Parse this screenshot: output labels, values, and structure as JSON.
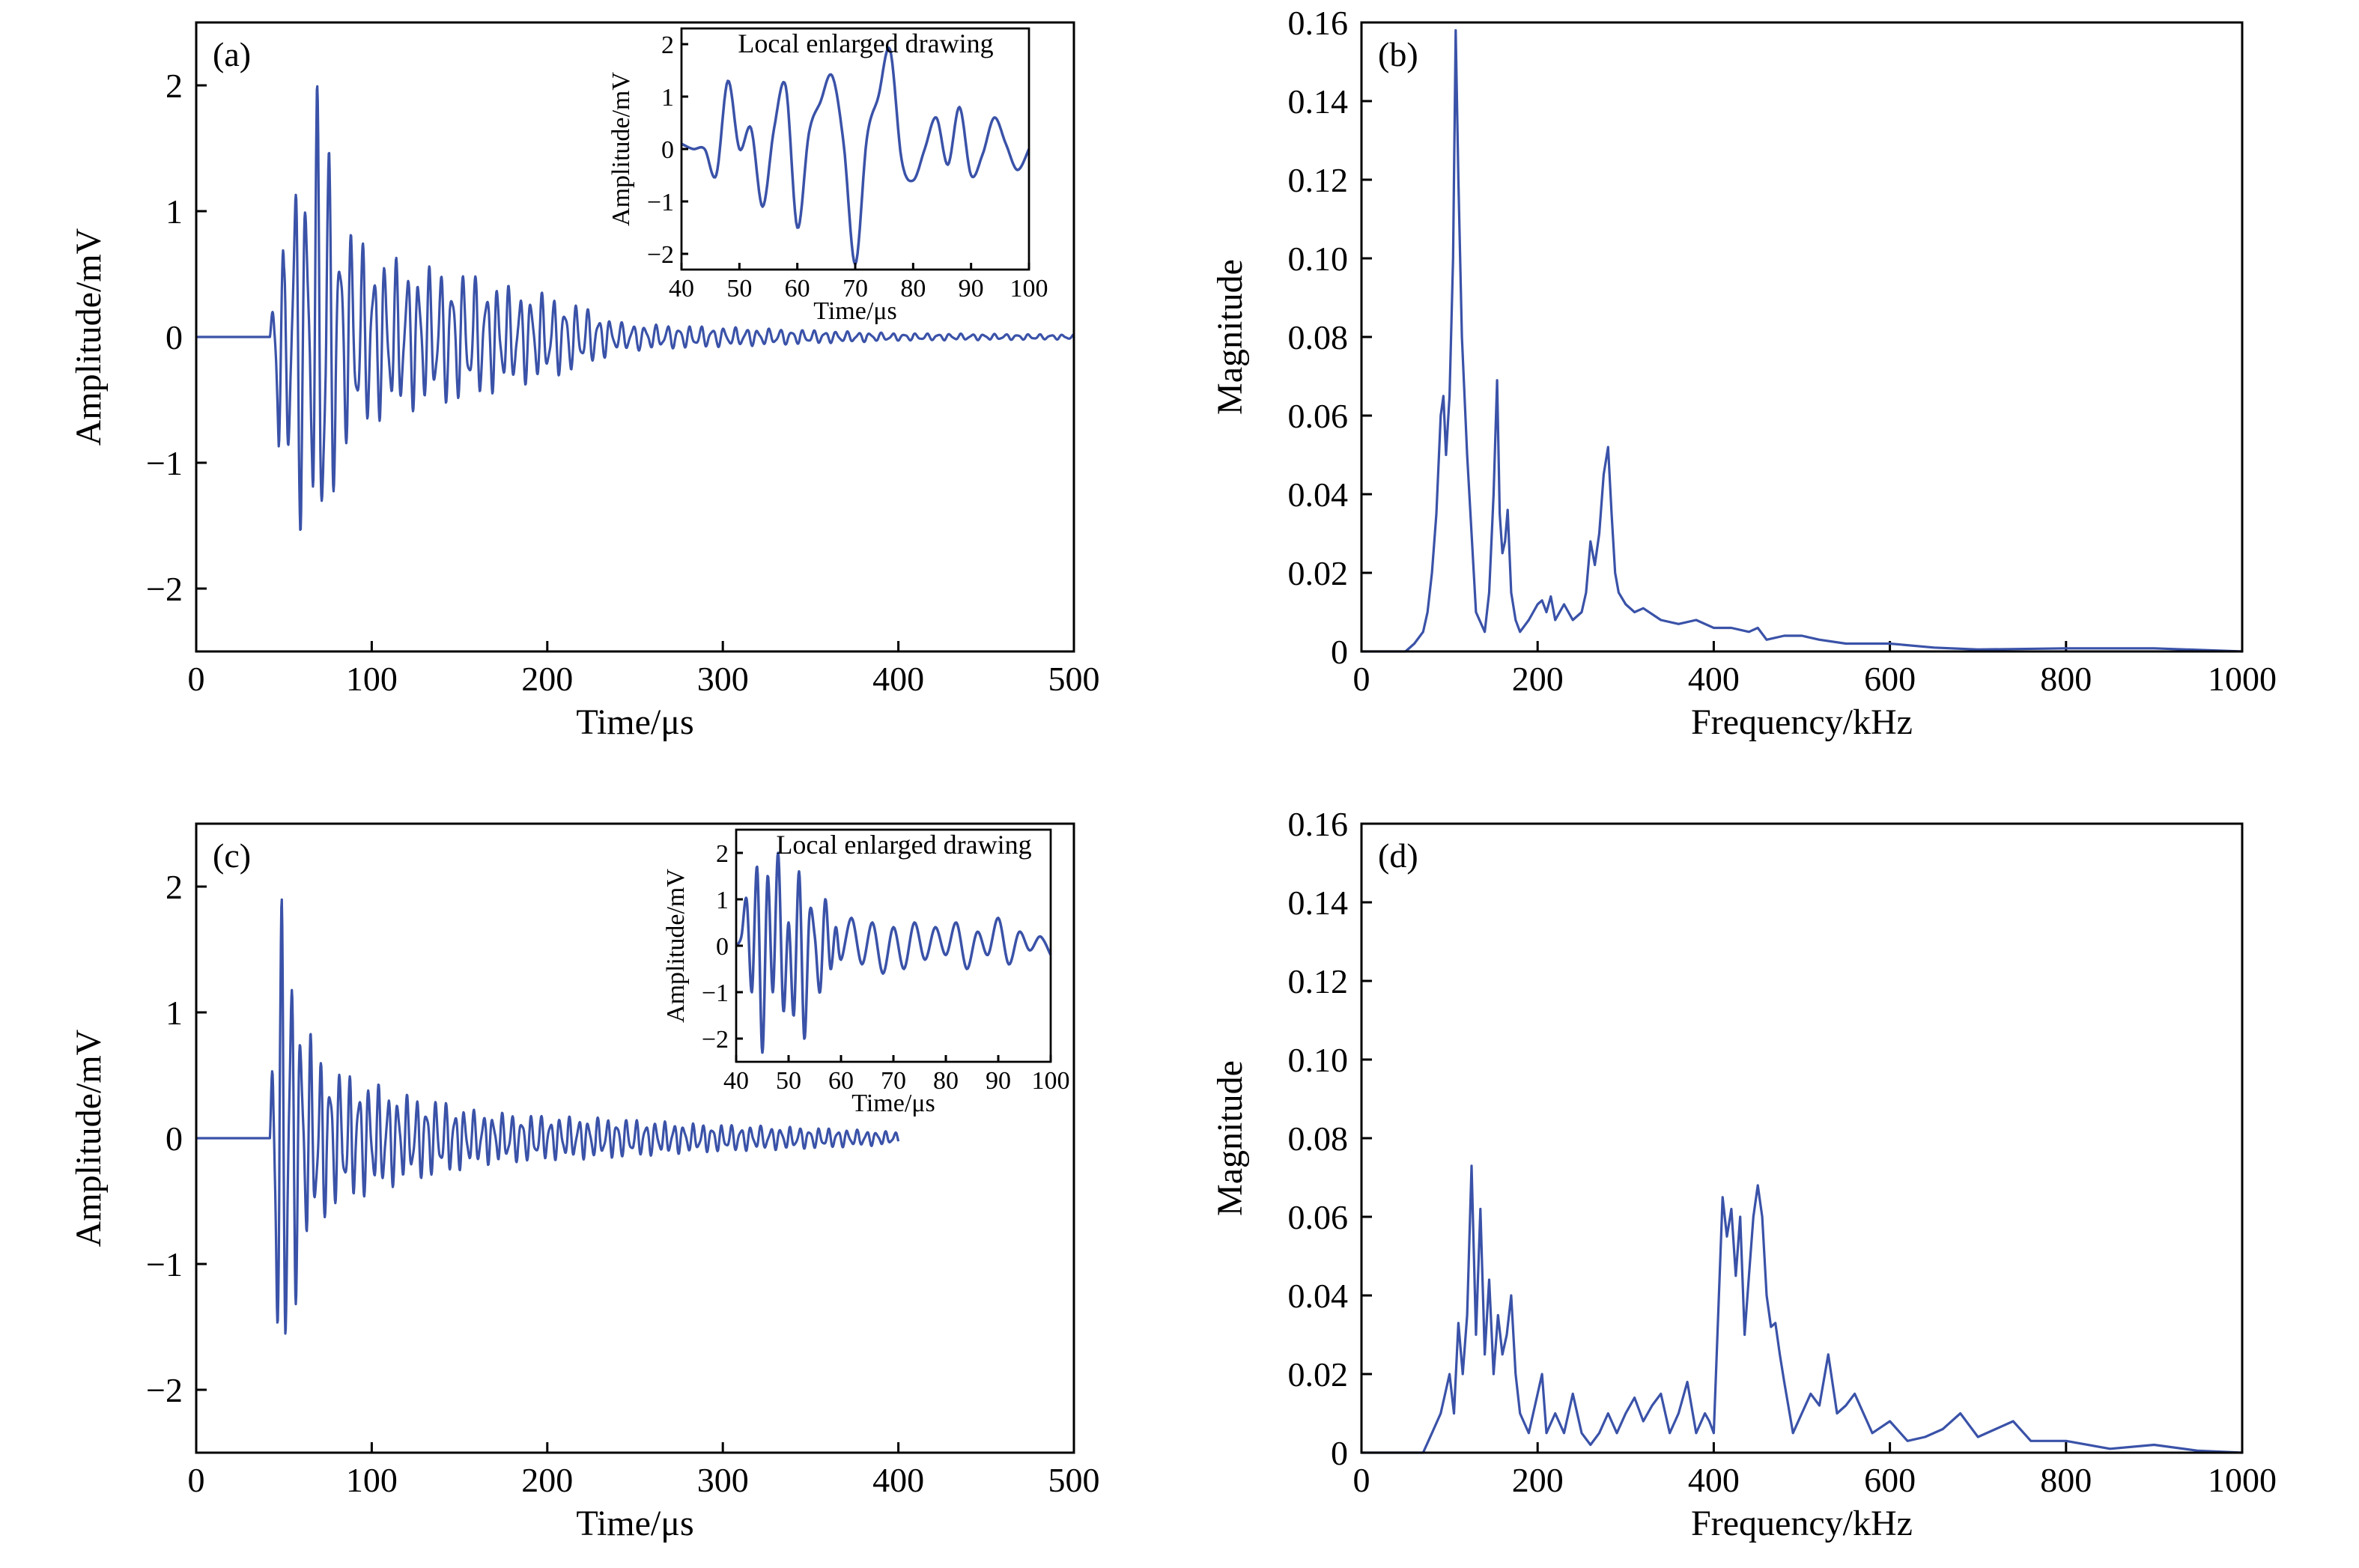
{
  "colors": {
    "series": "#3a52a8",
    "axes": "#000000",
    "background": "#ffffff"
  },
  "chart_data": [
    {
      "id": "a",
      "panel_label": "(a)",
      "type": "line",
      "xlabel": "Time/μs",
      "ylabel": "Amplitude/mV",
      "xlim": [
        0,
        500
      ],
      "ylim": [
        -2.5,
        2.5
      ],
      "xticks": [
        0,
        100,
        200,
        300,
        400,
        500
      ],
      "yticks": [
        -2,
        -1,
        0,
        1,
        2
      ],
      "ytick_labels": [
        "−2",
        "−1",
        "0",
        "1",
        "2"
      ],
      "x_end": 500,
      "series": [
        {
          "onset": 42,
          "end": 500,
          "envelope": [
            [
              0,
              0
            ],
            [
              42,
              0
            ],
            [
              45,
              0.6
            ],
            [
              47,
              1.3
            ],
            [
              50,
              0.6
            ],
            [
              52,
              1.1
            ],
            [
              55,
              1.4
            ],
            [
              58,
              1.6
            ],
            [
              62,
              1.45
            ],
            [
              66,
              1.35
            ],
            [
              70,
              2.3
            ],
            [
              75,
              1.8
            ],
            [
              80,
              1.0
            ],
            [
              90,
              0.85
            ],
            [
              100,
              0.7
            ],
            [
              120,
              0.6
            ],
            [
              140,
              0.55
            ],
            [
              160,
              0.5
            ],
            [
              180,
              0.4
            ],
            [
              200,
              0.35
            ],
            [
              220,
              0.25
            ],
            [
              240,
              0.12
            ],
            [
              260,
              0.1
            ],
            [
              300,
              0.08
            ],
            [
              400,
              0.03
            ],
            [
              500,
              0.02
            ]
          ],
          "mean_period": 6.5
        }
      ],
      "inset": {
        "title": "Local enlarged drawing",
        "xlabel": "Time/μs",
        "ylabel": "Amplitude/mV",
        "xlim": [
          40,
          100
        ],
        "ylim": [
          -2.3,
          2.3
        ],
        "xticks": [
          40,
          50,
          60,
          70,
          80,
          90,
          100
        ],
        "yticks": [
          -2,
          -1,
          0,
          1,
          2
        ],
        "ytick_labels": [
          "−2",
          "−1",
          "0",
          "1",
          "2"
        ],
        "x": [
          40,
          42,
          44,
          46,
          48,
          50,
          52,
          54,
          56,
          58,
          60,
          62,
          64,
          66,
          68,
          70,
          72,
          74,
          76,
          78,
          80,
          82,
          84,
          86,
          88,
          90,
          92,
          94,
          96,
          98,
          100
        ],
        "y": [
          0.1,
          0.0,
          0.0,
          -0.5,
          1.3,
          0.0,
          0.4,
          -1.1,
          0.4,
          1.2,
          -1.5,
          0.3,
          0.9,
          1.4,
          0.1,
          -2.2,
          0.2,
          1.0,
          1.9,
          -0.2,
          -0.6,
          0.0,
          0.6,
          -0.3,
          0.8,
          -0.5,
          -0.1,
          0.6,
          0.1,
          -0.4,
          0.0
        ]
      }
    },
    {
      "id": "b",
      "panel_label": "(b)",
      "type": "line",
      "xlabel": "Frequency/kHz",
      "ylabel": "Magnitude",
      "xlim": [
        0,
        1000
      ],
      "ylim": [
        0,
        0.16
      ],
      "xticks": [
        0,
        200,
        400,
        600,
        800,
        1000
      ],
      "yticks": [
        0,
        0.02,
        0.04,
        0.06,
        0.08,
        0.1,
        0.12,
        0.14,
        0.16
      ],
      "ytick_labels": [
        "0",
        "0.02",
        "0.04",
        "0.06",
        "0.08",
        "0.10",
        "0.12",
        "0.14",
        "0.16"
      ],
      "series": [
        {
          "x": [
            0,
            50,
            60,
            70,
            75,
            80,
            85,
            90,
            93,
            96,
            100,
            104,
            107,
            110,
            114,
            120,
            130,
            140,
            145,
            150,
            154,
            157,
            160,
            163,
            166,
            170,
            175,
            180,
            190,
            200,
            205,
            210,
            215,
            220,
            230,
            240,
            250,
            255,
            260,
            265,
            270,
            275,
            280,
            284,
            288,
            292,
            300,
            310,
            320,
            340,
            360,
            380,
            400,
            420,
            440,
            450,
            460,
            480,
            500,
            520,
            550,
            600,
            650,
            700,
            800,
            900,
            1000
          ],
          "y": [
            0,
            0,
            0.002,
            0.005,
            0.01,
            0.02,
            0.035,
            0.06,
            0.065,
            0.05,
            0.065,
            0.1,
            0.158,
            0.12,
            0.08,
            0.05,
            0.01,
            0.005,
            0.015,
            0.04,
            0.069,
            0.035,
            0.025,
            0.028,
            0.036,
            0.015,
            0.008,
            0.005,
            0.008,
            0.012,
            0.013,
            0.01,
            0.014,
            0.008,
            0.012,
            0.008,
            0.01,
            0.015,
            0.028,
            0.022,
            0.03,
            0.045,
            0.052,
            0.035,
            0.02,
            0.015,
            0.012,
            0.01,
            0.011,
            0.008,
            0.007,
            0.008,
            0.006,
            0.006,
            0.005,
            0.006,
            0.003,
            0.004,
            0.004,
            0.003,
            0.002,
            0.002,
            0.001,
            0.0005,
            0.0008,
            0.0008,
            0
          ]
        }
      ]
    },
    {
      "id": "c",
      "panel_label": "(c)",
      "type": "line",
      "xlabel": "Time/μs",
      "ylabel": "Amplitude/mV",
      "xlim": [
        0,
        500
      ],
      "ylim": [
        -2.5,
        2.5
      ],
      "xticks": [
        0,
        100,
        200,
        300,
        400,
        500
      ],
      "yticks": [
        -2,
        -1,
        0,
        1,
        2
      ],
      "ytick_labels": [
        "−2",
        "−1",
        "0",
        "1",
        "2"
      ],
      "series": [
        {
          "onset": 42,
          "end": 400,
          "envelope": [
            [
              0,
              0
            ],
            [
              42,
              0
            ],
            [
              44,
              1.2
            ],
            [
              46,
              2.3
            ],
            [
              48,
              1.8
            ],
            [
              50,
              2.1
            ],
            [
              52,
              2.0
            ],
            [
              55,
              1.5
            ],
            [
              60,
              1.0
            ],
            [
              70,
              0.7
            ],
            [
              80,
              0.55
            ],
            [
              100,
              0.45
            ],
            [
              120,
              0.35
            ],
            [
              140,
              0.3
            ],
            [
              160,
              0.22
            ],
            [
              200,
              0.18
            ],
            [
              240,
              0.16
            ],
            [
              280,
              0.12
            ],
            [
              320,
              0.1
            ],
            [
              360,
              0.08
            ],
            [
              400,
              0.05
            ]
          ],
          "mean_period": 5.5
        }
      ],
      "inset": {
        "title": "Local enlarged drawing",
        "xlabel": "Time/μs",
        "ylabel": "Amplitude/mV",
        "xlim": [
          40,
          100
        ],
        "ylim": [
          -2.5,
          2.5
        ],
        "xticks": [
          40,
          50,
          60,
          70,
          80,
          90,
          100
        ],
        "yticks": [
          -2,
          -1,
          0,
          1,
          2
        ],
        "ytick_labels": [
          "−2",
          "−1",
          "0",
          "1",
          "2"
        ],
        "x": [
          40,
          41,
          42,
          43,
          44,
          45,
          46,
          47,
          48,
          49,
          50,
          51,
          52,
          53,
          54,
          55,
          56,
          57,
          58,
          59,
          60,
          62,
          64,
          66,
          68,
          70,
          72,
          74,
          76,
          78,
          80,
          82,
          84,
          86,
          88,
          90,
          92,
          94,
          96,
          98,
          100
        ],
        "y": [
          0,
          0.2,
          1.0,
          -1.0,
          1.7,
          -2.3,
          1.5,
          -1.0,
          2.0,
          -1.4,
          0.5,
          -1.5,
          1.6,
          -2.0,
          0.7,
          0.2,
          -1.0,
          1.0,
          -0.5,
          0.4,
          -0.3,
          0.6,
          -0.4,
          0.5,
          -0.6,
          0.4,
          -0.5,
          0.5,
          -0.3,
          0.4,
          -0.2,
          0.5,
          -0.5,
          0.3,
          -0.2,
          0.6,
          -0.4,
          0.3,
          -0.1,
          0.2,
          -0.2
        ]
      }
    },
    {
      "id": "d",
      "panel_label": "(d)",
      "type": "line",
      "xlabel": "Frequency/kHz",
      "ylabel": "Magnitude",
      "xlim": [
        0,
        1000
      ],
      "ylim": [
        0,
        0.16
      ],
      "xticks": [
        0,
        200,
        400,
        600,
        800,
        1000
      ],
      "yticks": [
        0,
        0.02,
        0.04,
        0.06,
        0.08,
        0.1,
        0.12,
        0.14,
        0.16
      ],
      "ytick_labels": [
        "0",
        "0.02",
        "0.04",
        "0.06",
        "0.08",
        "0.10",
        "0.12",
        "0.14",
        "0.16"
      ],
      "series": [
        {
          "x": [
            0,
            70,
            80,
            90,
            95,
            100,
            105,
            110,
            115,
            120,
            125,
            130,
            135,
            140,
            145,
            150,
            155,
            160,
            165,
            170,
            175,
            180,
            190,
            200,
            205,
            210,
            220,
            230,
            240,
            250,
            260,
            270,
            280,
            290,
            300,
            310,
            320,
            330,
            340,
            350,
            360,
            370,
            380,
            390,
            395,
            400,
            405,
            410,
            415,
            420,
            425,
            430,
            435,
            440,
            445,
            450,
            455,
            460,
            465,
            470,
            475,
            480,
            490,
            500,
            510,
            520,
            530,
            540,
            550,
            560,
            570,
            580,
            600,
            620,
            640,
            660,
            680,
            700,
            720,
            740,
            760,
            800,
            850,
            900,
            950,
            1000
          ],
          "y": [
            0,
            0,
            0.005,
            0.01,
            0.015,
            0.02,
            0.01,
            0.033,
            0.02,
            0.035,
            0.073,
            0.03,
            0.062,
            0.025,
            0.044,
            0.02,
            0.035,
            0.025,
            0.03,
            0.04,
            0.02,
            0.01,
            0.005,
            0.015,
            0.02,
            0.005,
            0.01,
            0.005,
            0.015,
            0.005,
            0.002,
            0.005,
            0.01,
            0.005,
            0.01,
            0.014,
            0.008,
            0.012,
            0.015,
            0.005,
            0.01,
            0.018,
            0.005,
            0.01,
            0.008,
            0.005,
            0.035,
            0.065,
            0.055,
            0.062,
            0.045,
            0.06,
            0.03,
            0.045,
            0.06,
            0.068,
            0.06,
            0.04,
            0.032,
            0.033,
            0.025,
            0.018,
            0.005,
            0.01,
            0.015,
            0.012,
            0.025,
            0.01,
            0.012,
            0.015,
            0.01,
            0.005,
            0.008,
            0.003,
            0.004,
            0.006,
            0.01,
            0.004,
            0.006,
            0.008,
            0.003,
            0.003,
            0.001,
            0.002,
            0.0005,
            0
          ]
        }
      ]
    }
  ]
}
